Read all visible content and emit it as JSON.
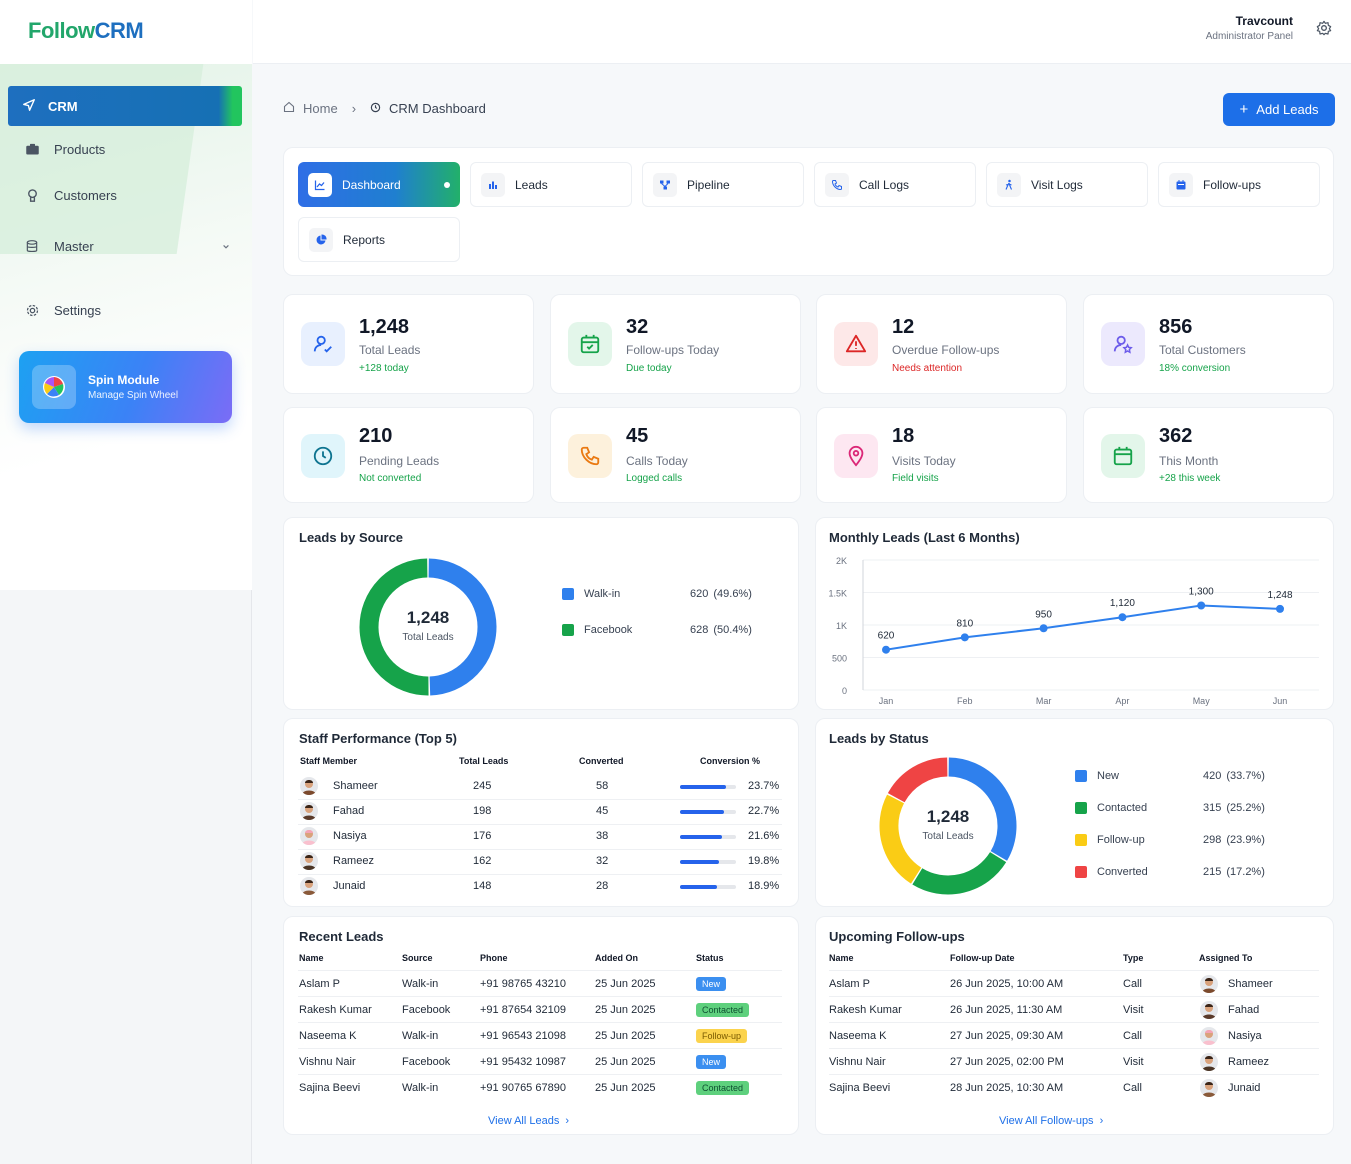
{
  "app": {
    "logo_part1": "Follow",
    "logo_part2": "CRM"
  },
  "user": {
    "name": "Travcount",
    "role": "Administrator Panel"
  },
  "sidebar": {
    "items": [
      {
        "label": "CRM",
        "icon": "send-icon"
      },
      {
        "label": "Products",
        "icon": "box-icon"
      },
      {
        "label": "Customers",
        "icon": "user-icon"
      },
      {
        "label": "Master",
        "icon": "database-icon"
      },
      {
        "label": "Settings",
        "icon": "gear-icon"
      }
    ],
    "spin": {
      "title": "Spin Module",
      "subtitle": "Manage Spin Wheel"
    }
  },
  "breadcrumb": {
    "home": "Home",
    "current": "CRM Dashboard"
  },
  "add_button": "Add Leads",
  "tabs": [
    {
      "label": "Dashboard",
      "icon": "chart-icon"
    },
    {
      "label": "Leads",
      "icon": "bar-chart-icon"
    },
    {
      "label": "Pipeline",
      "icon": "pipeline-icon"
    },
    {
      "label": "Call Logs",
      "icon": "phone-icon"
    },
    {
      "label": "Visit Logs",
      "icon": "walk-icon"
    },
    {
      "label": "Follow-ups",
      "icon": "calendar-icon"
    },
    {
      "label": "Reports",
      "icon": "pie-icon"
    }
  ],
  "stats": [
    {
      "value": "1,248",
      "label": "Total Leads",
      "sub": "+128 today",
      "sub_color": "#16a34a",
      "icon_bg": "#e8f0fe",
      "icon_color": "#2563eb",
      "icon": "user-check-icon"
    },
    {
      "value": "32",
      "label": "Follow-ups Today",
      "sub": "Due today",
      "sub_color": "#16a34a",
      "icon_bg": "#e3f6ea",
      "icon_color": "#16a34a",
      "icon": "calendar-check-icon"
    },
    {
      "value": "12",
      "label": "Overdue Follow-ups",
      "sub": "Needs attention",
      "sub_color": "#dc2626",
      "icon_bg": "#fde8e8",
      "icon_color": "#dc2626",
      "icon": "warning-icon"
    },
    {
      "value": "856",
      "label": "Total Customers",
      "sub": "18% conversion",
      "sub_color": "#16a34a",
      "icon_bg": "#ece9fd",
      "icon_color": "#6d5dea",
      "icon": "user-star-icon"
    },
    {
      "value": "210",
      "label": "Pending Leads",
      "sub": "Not converted",
      "sub_color": "#16a34a",
      "icon_bg": "#e0f5fb",
      "icon_color": "#0e7490",
      "icon": "clock-icon"
    },
    {
      "value": "45",
      "label": "Calls Today",
      "sub": "Logged calls",
      "sub_color": "#16a34a",
      "icon_bg": "#fdf1dc",
      "icon_color": "#ea7a13",
      "icon": "phone-icon"
    },
    {
      "value": "18",
      "label": "Visits Today",
      "sub": "Field visits",
      "sub_color": "#16a34a",
      "icon_bg": "#fde7f1",
      "icon_color": "#db2777",
      "icon": "pin-icon"
    },
    {
      "value": "362",
      "label": "This Month",
      "sub": "+28 this week",
      "sub_color": "#16a34a",
      "icon_bg": "#e3f6ea",
      "icon_color": "#16a34a",
      "icon": "calendar-icon"
    }
  ],
  "leads_by_source": {
    "title": "Leads by Source",
    "center_value": "1,248",
    "center_label": "Total Leads",
    "legend": [
      {
        "name": "Walk-in",
        "value": "620",
        "pct": "(49.6%)",
        "color": "#2f80ed"
      },
      {
        "name": "Facebook",
        "value": "628",
        "pct": "(50.4%)",
        "color": "#16a34a"
      }
    ]
  },
  "monthly": {
    "title": "Monthly Leads (Last 6 Months)"
  },
  "leads_by_status": {
    "title": "Leads by Status",
    "center_value": "1,248",
    "center_label": "Total Leads",
    "legend": [
      {
        "name": "New",
        "value": "420",
        "pct": "(33.7%)",
        "color": "#2f80ed"
      },
      {
        "name": "Contacted",
        "value": "315",
        "pct": "(25.2%)",
        "color": "#16a34a"
      },
      {
        "name": "Follow-up",
        "value": "298",
        "pct": "(23.9%)",
        "color": "#facc15"
      },
      {
        "name": "Converted",
        "value": "215",
        "pct": "(17.2%)",
        "color": "#ef4444"
      }
    ]
  },
  "staff": {
    "title": "Staff Performance (Top 5)",
    "headers": [
      "Staff Member",
      "Total Leads",
      "Converted",
      "Conversion %"
    ],
    "rows": [
      {
        "name": "Shameer",
        "total": "245",
        "conv": "58",
        "pct": "23.7%",
        "frac": 0.237
      },
      {
        "name": "Fahad",
        "total": "198",
        "conv": "45",
        "pct": "22.7%",
        "frac": 0.227
      },
      {
        "name": "Nasiya",
        "total": "176",
        "conv": "38",
        "pct": "21.6%",
        "frac": 0.216
      },
      {
        "name": "Rameez",
        "total": "162",
        "conv": "32",
        "pct": "19.8%",
        "frac": 0.198
      },
      {
        "name": "Junaid",
        "total": "148",
        "conv": "28",
        "pct": "18.9%",
        "frac": 0.189
      }
    ]
  },
  "recent": {
    "title": "Recent Leads",
    "headers": [
      "Name",
      "Source",
      "Phone",
      "Added On",
      "Status"
    ],
    "rows": [
      {
        "name": "Aslam P",
        "source": "Walk-in",
        "phone": "+91 98765 43210",
        "date": "25 Jun 2025",
        "status": "New"
      },
      {
        "name": "Rakesh Kumar",
        "source": "Facebook",
        "phone": "+91 87654 32109",
        "date": "25 Jun 2025",
        "status": "Contacted"
      },
      {
        "name": "Naseema K",
        "source": "Walk-in",
        "phone": "+91 96543 21098",
        "date": "25 Jun 2025",
        "status": "Follow-up"
      },
      {
        "name": "Vishnu Nair",
        "source": "Facebook",
        "phone": "+91 95432 10987",
        "date": "25 Jun 2025",
        "status": "New"
      },
      {
        "name": "Sajina Beevi",
        "source": "Walk-in",
        "phone": "+91 90765 67890",
        "date": "25 Jun 2025",
        "status": "Contacted"
      }
    ],
    "link": "View All Leads"
  },
  "upcoming": {
    "title": "Upcoming Follow-ups",
    "headers": [
      "Name",
      "Follow-up Date",
      "Type",
      "Assigned To"
    ],
    "rows": [
      {
        "name": "Aslam P",
        "date": "26 Jun 2025, 10:00 AM",
        "type": "Call",
        "to": "Shameer"
      },
      {
        "name": "Rakesh Kumar",
        "date": "26 Jun 2025, 11:30 AM",
        "type": "Visit",
        "to": "Fahad"
      },
      {
        "name": "Naseema K",
        "date": "27 Jun 2025, 09:30 AM",
        "type": "Call",
        "to": "Nasiya"
      },
      {
        "name": "Vishnu Nair",
        "date": "27 Jun 2025, 02:00 PM",
        "type": "Visit",
        "to": "Rameez"
      },
      {
        "name": "Sajina Beevi",
        "date": "28 Jun 2025, 10:30 AM",
        "type": "Call",
        "to": "Junaid"
      }
    ],
    "link": "View All Follow-ups"
  },
  "chart_data": [
    {
      "type": "pie",
      "title": "Leads by Source",
      "categories": [
        "Walk-in",
        "Facebook"
      ],
      "values": [
        620,
        628
      ]
    },
    {
      "type": "line",
      "title": "Monthly Leads (Last 6 Months)",
      "categories": [
        "Jan",
        "Feb",
        "Mar",
        "Apr",
        "May",
        "Jun"
      ],
      "values": [
        620,
        810,
        950,
        1120,
        1300,
        1248
      ],
      "ylim": [
        0,
        2000
      ],
      "yticks": [
        "0",
        "500",
        "1K",
        "1.5K",
        "2K"
      ],
      "grid": "horizontal"
    },
    {
      "type": "pie",
      "title": "Leads by Status",
      "categories": [
        "New",
        "Contacted",
        "Follow-up",
        "Converted"
      ],
      "values": [
        420,
        315,
        298,
        215
      ]
    }
  ]
}
